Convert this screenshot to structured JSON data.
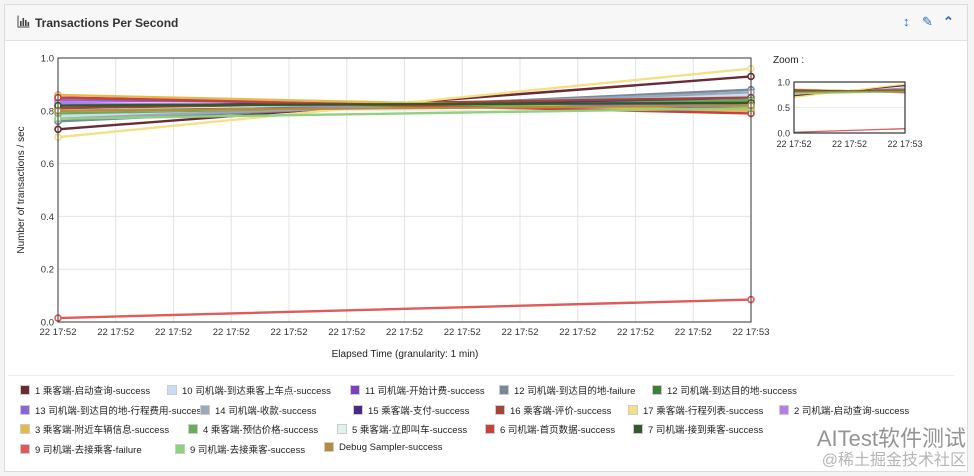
{
  "panel": {
    "title": "Transactions Per Second",
    "icons": {
      "chart": "bar-chart-icon",
      "resize": "resize-vertical-icon",
      "settings": "wrench-icon",
      "collapse": "chevron-up-icon"
    },
    "tool_glyphs": {
      "resize": "↕",
      "settings": "✎",
      "collapse": "⌃"
    }
  },
  "chart_data": {
    "type": "line",
    "xlabel": "Elapsed Time (granularity: 1 min)",
    "ylabel": "Number of transactions / sec",
    "ylim": [
      0,
      1
    ],
    "yticks": [
      "0.0",
      "0.2",
      "0.4",
      "0.6",
      "0.8",
      "1.0"
    ],
    "x": [
      "22 17:52",
      "22 17:53"
    ],
    "xtick_labels": [
      "22 17:52",
      "22 17:52",
      "22 17:52",
      "22 17:52",
      "22 17:52",
      "22 17:52",
      "22 17:52",
      "22 17:52",
      "22 17:52",
      "22 17:52",
      "22 17:52",
      "22 17:52",
      "22 17:53"
    ],
    "grid": true,
    "legend_placement": "bottom",
    "series": [
      {
        "name": "1 乘客端-启动查询-success",
        "color": "#6b2a36",
        "values": [
          0.73,
          0.93
        ]
      },
      {
        "name": "10 司机端-到达乘客上车点-success",
        "color": "#c8dcf2",
        "values": [
          0.78,
          0.86
        ]
      },
      {
        "name": "11 司机端-开始计费-success",
        "color": "#7c3fbf",
        "values": [
          0.85,
          0.81
        ]
      },
      {
        "name": "12 司机端-到达目的地-failure",
        "color": "#7a8898",
        "values": [
          0.76,
          0.88
        ]
      },
      {
        "name": "12 司机端-到达目的地-success",
        "color": "#3f7f3a",
        "values": [
          0.8,
          0.83
        ]
      },
      {
        "name": "13 司机端-到达目的地-行程费用-success",
        "color": "#8f63d8",
        "values": [
          0.84,
          0.82
        ]
      },
      {
        "name": "14 司机端-收款-success",
        "color": "#9aa8bd",
        "values": [
          0.77,
          0.87
        ]
      },
      {
        "name": "15 乘客端-支付-success",
        "color": "#4b2a86",
        "values": [
          0.82,
          0.84
        ]
      },
      {
        "name": "16 乘客端-评价-success",
        "color": "#a1443a",
        "values": [
          0.81,
          0.85
        ]
      },
      {
        "name": "17 乘客端-行程列表-success",
        "color": "#f5e08a",
        "values": [
          0.7,
          0.96
        ]
      },
      {
        "name": "2 司机端-启动查询-success",
        "color": "#b57ee6",
        "values": [
          0.83,
          0.8
        ]
      },
      {
        "name": "3 乘客端-附近车辆信息-success",
        "color": "#e8b947",
        "values": [
          0.86,
          0.8
        ]
      },
      {
        "name": "4 乘客端-预估价格-success",
        "color": "#6aab5c",
        "values": [
          0.79,
          0.84
        ]
      },
      {
        "name": "5 乘客端-立即叫车-success",
        "color": "#e2f2ea",
        "values": [
          0.8,
          0.82
        ]
      },
      {
        "name": "6 司机端-首页数据-success",
        "color": "#c7423f",
        "values": [
          0.85,
          0.79
        ]
      },
      {
        "name": "7 司机端-接到乘客-success",
        "color": "#2f5a2a",
        "values": [
          0.82,
          0.83
        ]
      },
      {
        "name": "9 司机端-去接乘客-failure",
        "color": "#e05a5a",
        "values": [
          0.015,
          0.085
        ]
      },
      {
        "name": "9 司机端-去接乘客-success",
        "color": "#8fd17e",
        "values": [
          0.77,
          0.81
        ]
      },
      {
        "name": "Debug Sampler-success",
        "color": "#b58c3c",
        "values": [
          0.8,
          0.82
        ]
      }
    ],
    "zoom": {
      "title": "Zoom :",
      "yticks": [
        "0.0",
        "0.5",
        "1.0"
      ],
      "xtick_labels": [
        "22 17:52",
        "22 17:52",
        "22 17:53"
      ]
    }
  },
  "watermark": {
    "line1": "AITest软件测试",
    "line2": "@稀土掘金技术社区"
  }
}
